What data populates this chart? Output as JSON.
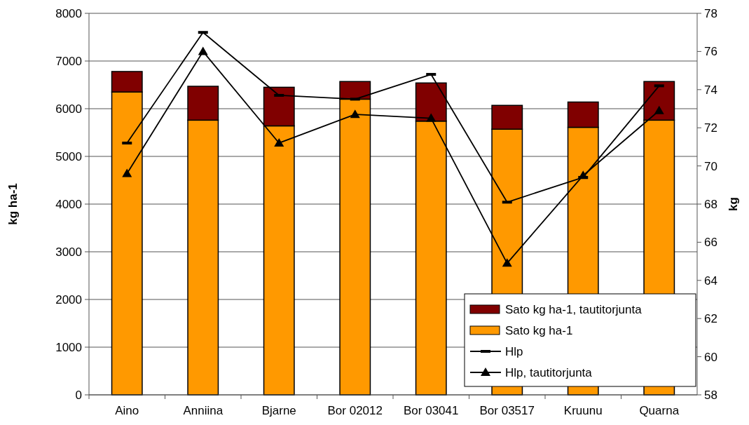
{
  "chart_data": {
    "type": "bar",
    "stacked": true,
    "ylabel": "kg ha-1",
    "y2label": "kg",
    "categories": [
      "Aino",
      "Anniina",
      "Bjarne",
      "Bor 02012",
      "Bor 03041",
      "Bor 03517",
      "Kruunu",
      "Quarna"
    ],
    "series": [
      {
        "name": "Sato kg ha-1",
        "color": "#ff9900",
        "values": [
          6350,
          5760,
          5640,
          6200,
          5740,
          5570,
          5610,
          5760
        ]
      },
      {
        "name": "Sato kg ha-1, tautitorjunta",
        "color": "#800000",
        "values": [
          430,
          710,
          810,
          370,
          800,
          500,
          530,
          810
        ]
      },
      {
        "name": "Hlp",
        "type": "line",
        "axis": "y2",
        "color": "#000000",
        "values": [
          71.2,
          77.0,
          73.7,
          73.5,
          74.8,
          68.1,
          69.4,
          74.2
        ]
      },
      {
        "name": "Hlp, tautitorjunta",
        "type": "line",
        "axis": "y2",
        "color": "#000000",
        "marker": "triangle",
        "values": [
          69.6,
          76.0,
          71.2,
          72.7,
          72.5,
          64.9,
          69.5,
          72.9
        ]
      }
    ],
    "ylim": [
      0,
      8000
    ],
    "yticks": [
      0,
      1000,
      2000,
      3000,
      4000,
      5000,
      6000,
      7000,
      8000
    ],
    "y2lim": [
      58,
      78
    ],
    "y2ticks": [
      58,
      60,
      62,
      64,
      66,
      68,
      70,
      72,
      74,
      76,
      78
    ],
    "grid": "y",
    "legend": "bottom right"
  }
}
